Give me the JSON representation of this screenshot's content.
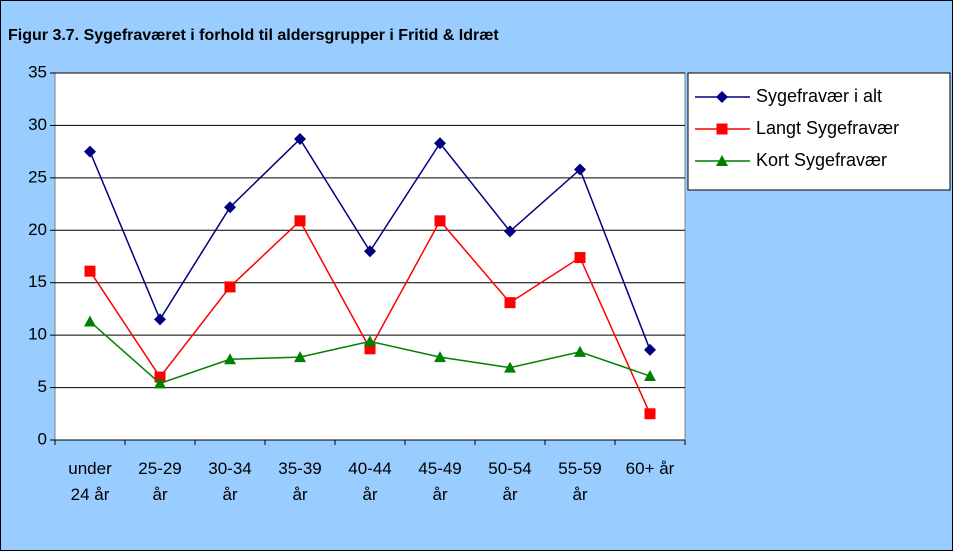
{
  "chart_data": {
    "type": "line",
    "title": "Figur 3.7. Sygefraværet i forhold til aldersgrupper i Fritid & Idræt",
    "categories": [
      "under 24 år",
      "25-29 år",
      "30-34 år",
      "35-39 år",
      "40-44 år",
      "45-49 år",
      "50-54 år",
      "55-59 år",
      "60+ år"
    ],
    "series": [
      {
        "name": "Sygefravær i alt",
        "color": "#000080",
        "marker": "diamond",
        "values": [
          27.5,
          11.5,
          22.2,
          28.7,
          18.0,
          28.3,
          19.9,
          25.8,
          8.6
        ]
      },
      {
        "name": "Langt Sygefravær",
        "color": "#ff0000",
        "marker": "square",
        "values": [
          16.1,
          6.0,
          14.6,
          20.9,
          8.7,
          20.9,
          13.1,
          17.4,
          2.5
        ]
      },
      {
        "name": "Kort Sygefravær",
        "color": "#008000",
        "marker": "triangle",
        "values": [
          11.3,
          5.4,
          7.7,
          7.9,
          9.4,
          7.9,
          6.9,
          8.4,
          6.1
        ]
      }
    ],
    "ylim": [
      0,
      35
    ],
    "yticks": [
      0,
      5,
      10,
      15,
      20,
      25,
      30,
      35
    ],
    "grid": true,
    "legend": "right"
  }
}
